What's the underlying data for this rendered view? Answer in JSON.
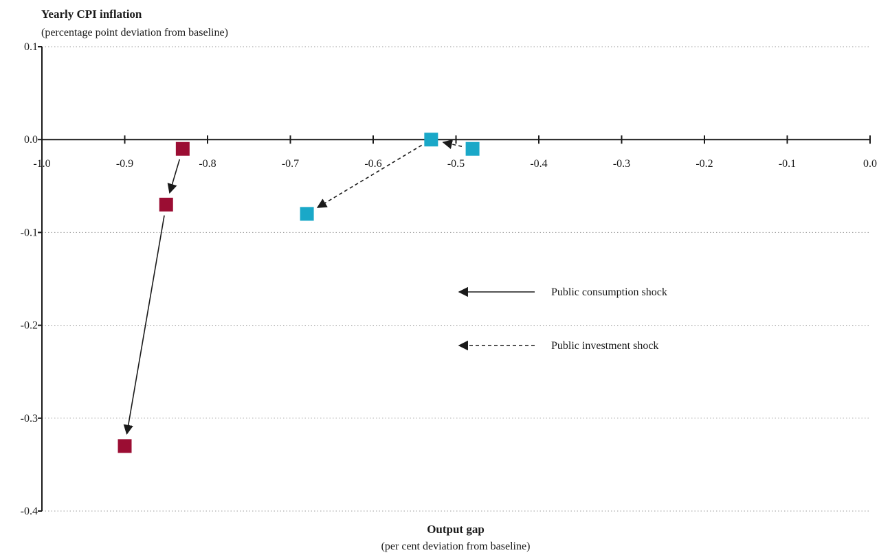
{
  "chart_data": {
    "type": "scatter",
    "ylabel": "Yearly CPI inflation",
    "ylabel_sub": "(percentage point deviation from baseline)",
    "xlabel": "Output gap",
    "xlabel_sub": "(per cent deviation from baseline)",
    "xlim": [
      -1.0,
      0.0
    ],
    "ylim": [
      -0.4,
      0.1
    ],
    "x_ticks": [
      "-1.0",
      "-0.9",
      "-0.8",
      "-0.7",
      "-0.6",
      "-0.5",
      "-0.4",
      "-0.3",
      "-0.2",
      "-0.1",
      "0.0"
    ],
    "y_ticks": [
      "0.1",
      "0.0",
      "-0.1",
      "-0.2",
      "-0.3",
      "-0.4"
    ],
    "grid": "horizontal dotted",
    "series": [
      {
        "name": "Public consumption shock",
        "color": "#9b0d33",
        "line_style": "solid",
        "points": [
          {
            "x": -0.83,
            "y": -0.01
          },
          {
            "x": -0.85,
            "y": -0.07
          },
          {
            "x": -0.9,
            "y": -0.33
          }
        ]
      },
      {
        "name": "Public investment shock",
        "color": "#1aa8c8",
        "line_style": "dashed",
        "points": [
          {
            "x": -0.48,
            "y": -0.01
          },
          {
            "x": -0.53,
            "y": 0.0
          },
          {
            "x": -0.68,
            "y": -0.08
          }
        ]
      }
    ]
  }
}
